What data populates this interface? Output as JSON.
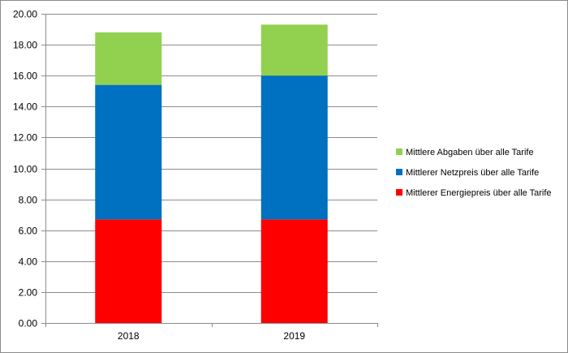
{
  "chart_data": {
    "type": "bar",
    "stacked": true,
    "categories": [
      "2018",
      "2019"
    ],
    "series": [
      {
        "name": "Mittlerer Energiepreis über alle Tarife",
        "color": "#ff0000",
        "values": [
          6.7,
          6.7
        ]
      },
      {
        "name": "Mittlerer Netzpreis über alle Tarife",
        "color": "#0070c0",
        "values": [
          8.7,
          9.3
        ]
      },
      {
        "name": "Mittlere Abgaben über alle Tarife",
        "color": "#92d050",
        "values": [
          3.4,
          3.3
        ]
      }
    ],
    "ylim": [
      0,
      20
    ],
    "yticks": [
      "0.00",
      "2.00",
      "4.00",
      "6.00",
      "8.00",
      "10.00",
      "12.00",
      "14.00",
      "16.00",
      "18.00",
      "20.00"
    ],
    "grid": true,
    "legend_position": "right",
    "legend_order": [
      2,
      1,
      0
    ]
  }
}
